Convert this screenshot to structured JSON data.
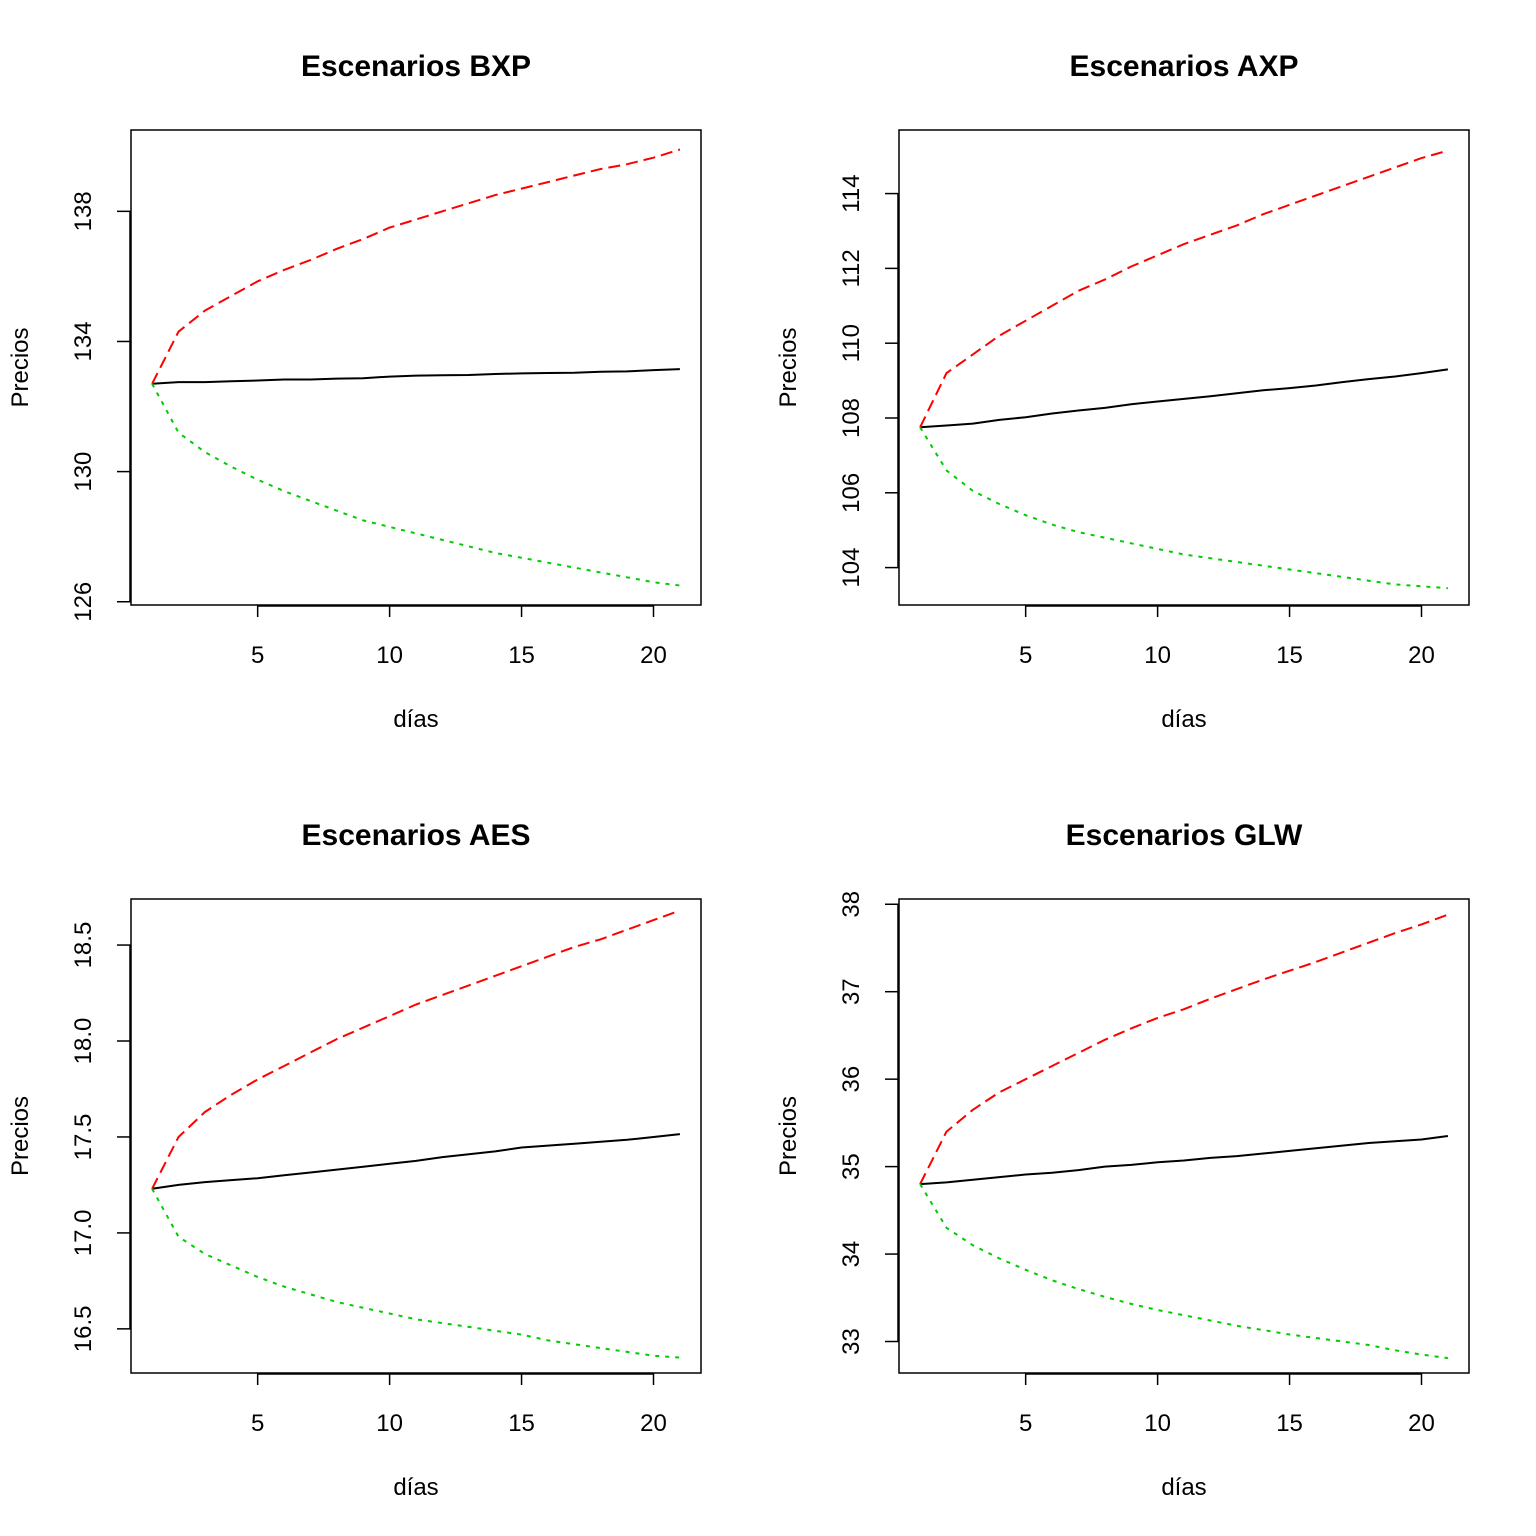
{
  "chart_data": [
    {
      "type": "line",
      "title": "Escenarios BXP",
      "xlabel": "días",
      "ylabel": "Precios",
      "xlim": [
        0.2,
        21.8
      ],
      "ylim": [
        125.9,
        140.5
      ],
      "x_ticks": [
        5,
        10,
        15,
        20
      ],
      "y_ticks": [
        126,
        130,
        134,
        138
      ],
      "grid": false,
      "x": [
        1,
        2,
        3,
        4,
        5,
        6,
        7,
        8,
        9,
        10,
        11,
        12,
        13,
        14,
        15,
        16,
        17,
        18,
        19,
        20,
        21
      ],
      "series": [
        {
          "color": "#000000",
          "dash": "solid",
          "values": [
            132.7,
            132.75,
            132.75,
            132.78,
            132.8,
            132.83,
            132.83,
            132.86,
            132.87,
            132.92,
            132.95,
            132.96,
            132.97,
            133.0,
            133.02,
            133.03,
            133.04,
            133.07,
            133.08,
            133.12,
            133.15
          ]
        },
        {
          "color": "#ff0000",
          "dash": "dashed",
          "values": [
            132.7,
            134.3,
            134.95,
            135.4,
            135.85,
            136.2,
            136.5,
            136.85,
            137.15,
            137.5,
            137.75,
            138.0,
            138.25,
            138.5,
            138.7,
            138.9,
            139.1,
            139.3,
            139.45,
            139.65,
            139.9
          ]
        },
        {
          "color": "#00cc00",
          "dash": "dotted",
          "values": [
            132.7,
            131.2,
            130.6,
            130.15,
            129.75,
            129.4,
            129.1,
            128.8,
            128.5,
            128.3,
            128.1,
            127.9,
            127.7,
            127.5,
            127.35,
            127.2,
            127.05,
            126.9,
            126.75,
            126.6,
            126.5
          ]
        }
      ]
    },
    {
      "type": "line",
      "title": "Escenarios AXP",
      "xlabel": "días",
      "ylabel": "Precios",
      "xlim": [
        0.2,
        21.8
      ],
      "ylim": [
        103.0,
        115.7
      ],
      "x_ticks": [
        5,
        10,
        15,
        20
      ],
      "y_ticks": [
        104,
        106,
        108,
        110,
        112,
        114
      ],
      "grid": false,
      "x": [
        1,
        2,
        3,
        4,
        5,
        6,
        7,
        8,
        9,
        10,
        11,
        12,
        13,
        14,
        15,
        16,
        17,
        18,
        19,
        20,
        21
      ],
      "series": [
        {
          "color": "#000000",
          "dash": "solid",
          "values": [
            107.75,
            107.8,
            107.85,
            107.95,
            108.02,
            108.12,
            108.2,
            108.27,
            108.37,
            108.44,
            108.51,
            108.58,
            108.66,
            108.74,
            108.8,
            108.87,
            108.96,
            109.04,
            109.11,
            109.2,
            109.3
          ]
        },
        {
          "color": "#ff0000",
          "dash": "dashed",
          "values": [
            107.75,
            109.2,
            109.7,
            110.2,
            110.6,
            111.0,
            111.4,
            111.7,
            112.05,
            112.35,
            112.65,
            112.9,
            113.15,
            113.45,
            113.7,
            113.95,
            114.2,
            114.45,
            114.7,
            114.95,
            115.15
          ]
        },
        {
          "color": "#00cc00",
          "dash": "dotted",
          "values": [
            107.75,
            106.6,
            106.05,
            105.7,
            105.4,
            105.15,
            104.95,
            104.8,
            104.65,
            104.5,
            104.35,
            104.25,
            104.15,
            104.05,
            103.95,
            103.85,
            103.75,
            103.65,
            103.55,
            103.5,
            103.45
          ]
        }
      ]
    },
    {
      "type": "line",
      "title": "Escenarios AES",
      "xlabel": "días",
      "ylabel": "Precios",
      "xlim": [
        0.2,
        21.8
      ],
      "ylim": [
        16.27,
        18.74
      ],
      "x_ticks": [
        5,
        10,
        15,
        20
      ],
      "y_ticks": [
        16.5,
        17.0,
        17.5,
        18.0,
        18.5
      ],
      "y_tick_labels": [
        "16.5",
        "17.0",
        "17.5",
        "18.0",
        "18.5"
      ],
      "grid": false,
      "x": [
        1,
        2,
        3,
        4,
        5,
        6,
        7,
        8,
        9,
        10,
        11,
        12,
        13,
        14,
        15,
        16,
        17,
        18,
        19,
        20,
        21
      ],
      "series": [
        {
          "color": "#000000",
          "dash": "solid",
          "values": [
            17.23,
            17.25,
            17.265,
            17.275,
            17.285,
            17.3,
            17.315,
            17.33,
            17.345,
            17.36,
            17.375,
            17.395,
            17.41,
            17.425,
            17.445,
            17.455,
            17.465,
            17.475,
            17.485,
            17.5,
            17.515
          ]
        },
        {
          "color": "#ff0000",
          "dash": "dashed",
          "values": [
            17.23,
            17.5,
            17.63,
            17.72,
            17.8,
            17.87,
            17.94,
            18.01,
            18.07,
            18.13,
            18.19,
            18.24,
            18.29,
            18.34,
            18.39,
            18.44,
            18.49,
            18.53,
            18.58,
            18.63,
            18.68
          ]
        },
        {
          "color": "#00cc00",
          "dash": "dotted",
          "values": [
            17.23,
            16.98,
            16.89,
            16.83,
            16.77,
            16.72,
            16.68,
            16.64,
            16.61,
            16.58,
            16.55,
            16.53,
            16.51,
            16.49,
            16.47,
            16.44,
            16.42,
            16.4,
            16.38,
            16.36,
            16.35
          ]
        }
      ]
    },
    {
      "type": "line",
      "title": "Escenarios GLW",
      "xlabel": "días",
      "ylabel": "Precios",
      "xlim": [
        0.2,
        21.8
      ],
      "ylim": [
        32.64,
        38.06
      ],
      "x_ticks": [
        5,
        10,
        15,
        20
      ],
      "y_ticks": [
        33,
        34,
        35,
        36,
        37,
        38
      ],
      "grid": false,
      "x": [
        1,
        2,
        3,
        4,
        5,
        6,
        7,
        8,
        9,
        10,
        11,
        12,
        13,
        14,
        15,
        16,
        17,
        18,
        19,
        20,
        21
      ],
      "series": [
        {
          "color": "#000000",
          "dash": "solid",
          "values": [
            34.8,
            34.82,
            34.85,
            34.88,
            34.91,
            34.93,
            34.96,
            35.0,
            35.02,
            35.05,
            35.07,
            35.1,
            35.12,
            35.15,
            35.18,
            35.21,
            35.24,
            35.27,
            35.29,
            35.31,
            35.35
          ]
        },
        {
          "color": "#ff0000",
          "dash": "dashed",
          "values": [
            34.8,
            35.4,
            35.65,
            35.85,
            36.0,
            36.15,
            36.3,
            36.45,
            36.58,
            36.7,
            36.8,
            36.92,
            37.03,
            37.14,
            37.24,
            37.34,
            37.45,
            37.56,
            37.67,
            37.77,
            37.88
          ]
        },
        {
          "color": "#00cc00",
          "dash": "dotted",
          "values": [
            34.8,
            34.3,
            34.1,
            33.95,
            33.82,
            33.7,
            33.6,
            33.51,
            33.43,
            33.36,
            33.3,
            33.24,
            33.18,
            33.13,
            33.08,
            33.04,
            33.0,
            32.96,
            32.9,
            32.85,
            32.81
          ]
        }
      ]
    }
  ]
}
